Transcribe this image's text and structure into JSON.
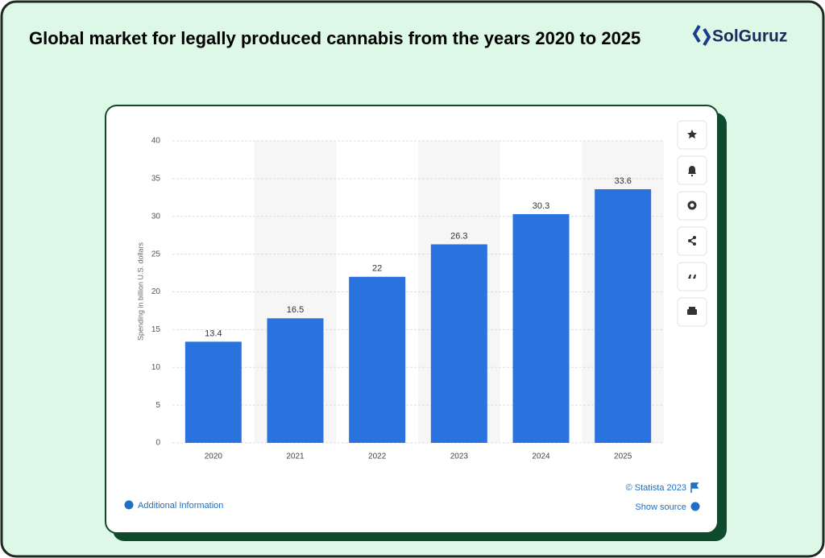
{
  "logo": "SolGuruz",
  "chart_data": {
    "type": "bar",
    "title": "Global market for legally produced cannabis from the years 2020 to 2025",
    "ylabel": "Spending in billion U.S. dollars",
    "categories": [
      "2020",
      "2021",
      "2022",
      "2023",
      "2024",
      "2025"
    ],
    "values": [
      13.4,
      16.5,
      22,
      26.3,
      30.3,
      33.6
    ],
    "color": "#2a72de",
    "ylim": [
      0,
      40
    ],
    "yticks": [
      0,
      5,
      10,
      15,
      20,
      25,
      30,
      35,
      40
    ],
    "grid": true,
    "source": "© Statista 2023"
  },
  "footer": {
    "additional_info": "Additional Information",
    "show_source": "Show source"
  }
}
